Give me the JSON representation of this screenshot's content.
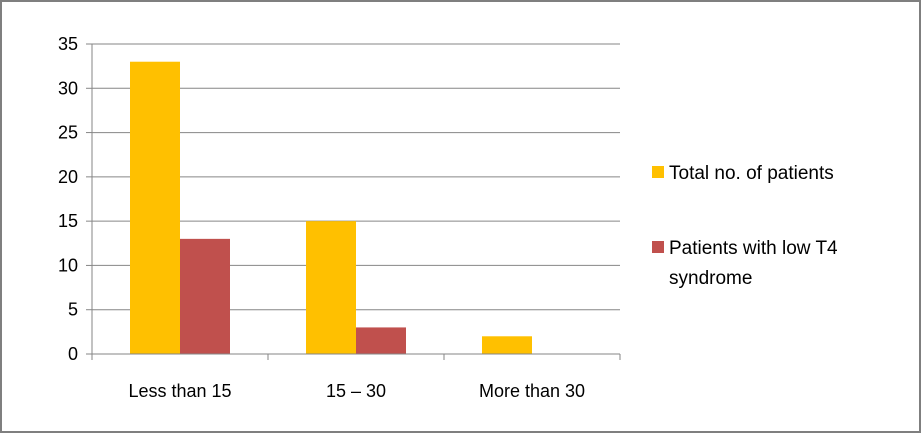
{
  "chart_data": {
    "type": "bar",
    "title": "",
    "xlabel": "",
    "ylabel": "",
    "categories": [
      "Less than 15",
      "15 – 30",
      "More than 30"
    ],
    "series": [
      {
        "name": "Total no. of patients",
        "values": [
          33,
          15,
          2
        ],
        "color": "#ffc000"
      },
      {
        "name": "Patients with low  T4 syndrome",
        "values": [
          13,
          3,
          0
        ],
        "color": "#c0504d"
      }
    ],
    "ylim": [
      0,
      35
    ],
    "yticks": [
      "0",
      "5",
      "10",
      "15",
      "20",
      "25",
      "30",
      "35"
    ],
    "grid": true,
    "legend_position": "right"
  },
  "legend": {
    "item0_label": "Total no. of patients",
    "item1_line1": "Patients with low  T4",
    "item1_line2": "syndrome"
  },
  "colors": {
    "gridline": "#868686",
    "axis": "#868686",
    "border": "#7f7f7f"
  }
}
